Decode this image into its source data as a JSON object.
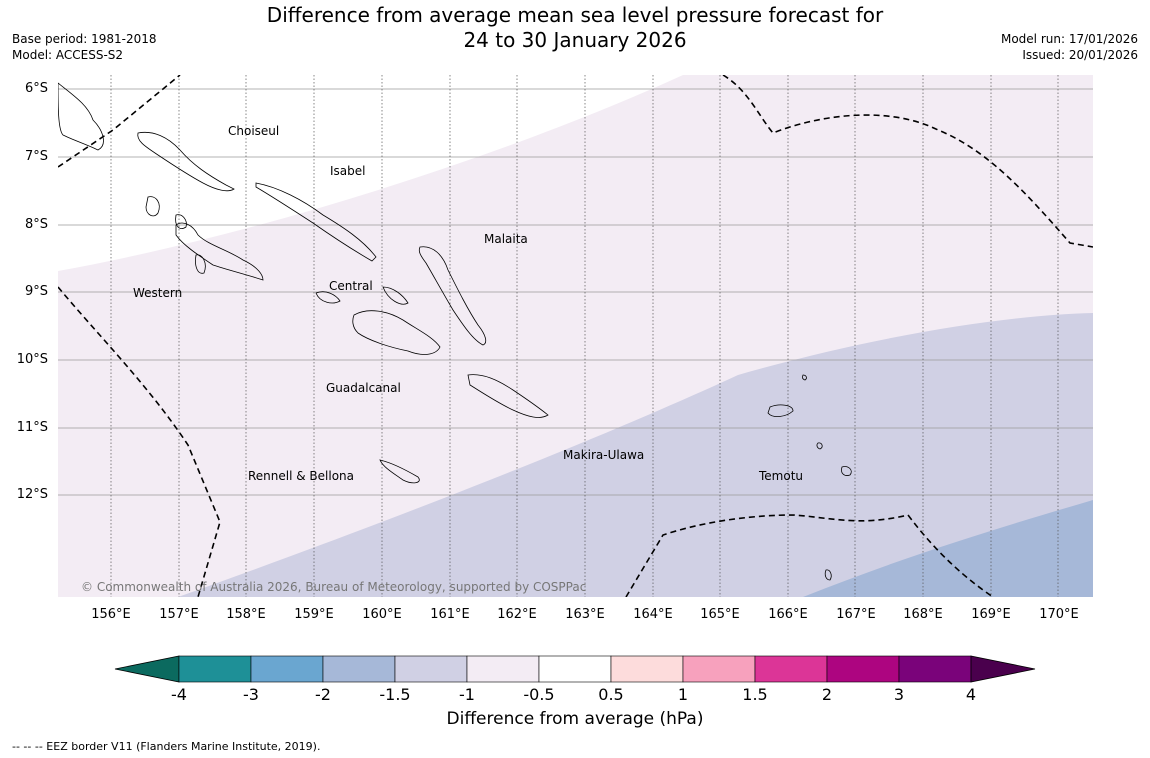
{
  "header": {
    "title_line1": "Difference from average mean sea level pressure forecast for",
    "title_line2": "24 to 30 January 2026",
    "base_period": "Base period: 1981-2018",
    "model": "Model: ACCESS-S2",
    "model_run": "Model run: 17/01/2026",
    "issued": "Issued: 20/01/2026"
  },
  "map": {
    "latitude_labels": [
      "6°S",
      "7°S",
      "8°S",
      "9°S",
      "10°S",
      "11°S",
      "12°S"
    ],
    "longitude_labels": [
      "156°E",
      "157°E",
      "158°E",
      "159°E",
      "160°E",
      "161°E",
      "162°E",
      "163°E",
      "164°E",
      "165°E",
      "166°E",
      "167°E",
      "168°E",
      "169°E",
      "170°E"
    ],
    "places": {
      "choiseul": "Choiseul",
      "isabel": "Isabel",
      "malaita": "Malaita",
      "western": "Western",
      "central": "Central",
      "guadalcanal": "Guadalcanal",
      "makira": "Makira-Ulawa",
      "rennell": "Rennell & Bellona",
      "temotu": "Temotu"
    },
    "copyright": "© Commonwealth of Australia 2026, Bureau of Meteorology, supported by COSPPac"
  },
  "colorbar": {
    "ticks": [
      "-4",
      "-3",
      "-2",
      "-1.5",
      "-1",
      "-0.5",
      "0.5",
      "1",
      "1.5",
      "2",
      "3",
      "4"
    ],
    "colors": [
      "#1e9097",
      "#6aa6d0",
      "#a6b8d8",
      "#d0d0e4",
      "#f3ecf4",
      "#ffffff",
      "#fddcdc",
      "#f7a1bd",
      "#dc3597",
      "#ad0580",
      "#7a037a"
    ],
    "under_color": "#0b6a5f",
    "over_color": "#4a004d",
    "title": "Difference from average (hPa)"
  },
  "footnote": "--  --  -- EEZ border V11 (Flanders Marine Institute, 2019)."
}
